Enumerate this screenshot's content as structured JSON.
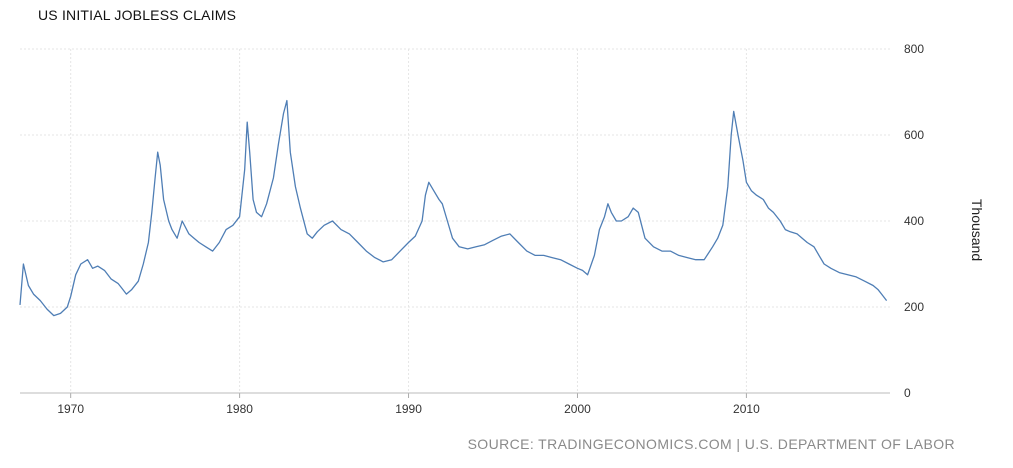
{
  "chart_data": {
    "type": "line",
    "title": "US INITIAL JOBLESS CLAIMS",
    "ylabel": "Thousand",
    "xlabel": "",
    "source": "SOURCE: TRADINGECONOMICS.COM | U.S. DEPARTMENT OF LABOR",
    "x_ticks": [
      "1970",
      "1980",
      "1990",
      "2000",
      "2010"
    ],
    "y_ticks": [
      "0",
      "200",
      "400",
      "600",
      "800"
    ],
    "xlim": [
      1967.0,
      2018.5
    ],
    "ylim": [
      0,
      800
    ],
    "grid": true,
    "legend": "none",
    "line_color": "#4f7eb5",
    "series": [
      {
        "x": [
          1967.0,
          1967.2,
          1967.5,
          1967.8,
          1968.2,
          1968.6,
          1969.0,
          1969.4,
          1969.8,
          1970.0,
          1970.3,
          1970.6,
          1971.0,
          1971.3,
          1971.6,
          1972.0,
          1972.4,
          1972.8,
          1973.0,
          1973.3,
          1973.6,
          1974.0,
          1974.3,
          1974.6,
          1974.8,
          1975.0,
          1975.15,
          1975.3,
          1975.5,
          1975.8,
          1976.0,
          1976.3,
          1976.6,
          1977.0,
          1977.3,
          1977.6,
          1978.0,
          1978.4,
          1978.8,
          1979.2,
          1979.6,
          1980.0,
          1980.3,
          1980.45,
          1980.6,
          1980.8,
          1981.0,
          1981.3,
          1981.6,
          1982.0,
          1982.3,
          1982.6,
          1982.8,
          1983.0,
          1983.3,
          1983.6,
          1984.0,
          1984.3,
          1984.6,
          1985.0,
          1985.5,
          1986.0,
          1986.5,
          1987.0,
          1987.5,
          1988.0,
          1988.5,
          1989.0,
          1989.5,
          1990.0,
          1990.4,
          1990.8,
          1991.0,
          1991.2,
          1991.5,
          1991.8,
          1992.0,
          1992.3,
          1992.6,
          1993.0,
          1993.5,
          1994.0,
          1994.5,
          1995.0,
          1995.5,
          1996.0,
          1996.5,
          1997.0,
          1997.5,
          1998.0,
          1998.5,
          1999.0,
          1999.5,
          2000.0,
          2000.3,
          2000.6,
          2001.0,
          2001.3,
          2001.6,
          2001.8,
          2002.0,
          2002.3,
          2002.6,
          2003.0,
          2003.3,
          2003.6,
          2004.0,
          2004.5,
          2005.0,
          2005.5,
          2006.0,
          2006.5,
          2007.0,
          2007.5,
          2008.0,
          2008.3,
          2008.6,
          2008.9,
          2009.1,
          2009.25,
          2009.5,
          2009.8,
          2010.0,
          2010.3,
          2010.6,
          2011.0,
          2011.3,
          2011.6,
          2012.0,
          2012.3,
          2012.6,
          2013.0,
          2013.3,
          2013.6,
          2014.0,
          2014.3,
          2014.6,
          2015.0,
          2015.5,
          2016.0,
          2016.5,
          2017.0,
          2017.5,
          2017.8,
          2018.0,
          2018.3
        ],
        "y": [
          205,
          300,
          250,
          230,
          215,
          195,
          180,
          185,
          200,
          225,
          275,
          300,
          310,
          290,
          295,
          285,
          265,
          255,
          245,
          230,
          240,
          260,
          300,
          350,
          420,
          500,
          560,
          530,
          450,
          400,
          380,
          360,
          400,
          370,
          360,
          350,
          340,
          330,
          350,
          380,
          390,
          410,
          520,
          630,
          560,
          450,
          420,
          410,
          440,
          500,
          580,
          650,
          680,
          560,
          480,
          430,
          370,
          360,
          375,
          390,
          400,
          380,
          370,
          350,
          330,
          315,
          305,
          310,
          330,
          350,
          365,
          400,
          460,
          490,
          470,
          450,
          440,
          400,
          360,
          340,
          335,
          340,
          345,
          355,
          365,
          370,
          350,
          330,
          320,
          320,
          315,
          310,
          300,
          290,
          285,
          275,
          320,
          380,
          410,
          440,
          420,
          400,
          400,
          410,
          430,
          420,
          360,
          340,
          330,
          330,
          320,
          315,
          310,
          310,
          340,
          360,
          390,
          480,
          600,
          655,
          600,
          540,
          490,
          470,
          460,
          450,
          430,
          420,
          400,
          380,
          375,
          370,
          360,
          350,
          340,
          320,
          300,
          290,
          280,
          275,
          270,
          260,
          250,
          240,
          230,
          215
        ]
      }
    ]
  }
}
